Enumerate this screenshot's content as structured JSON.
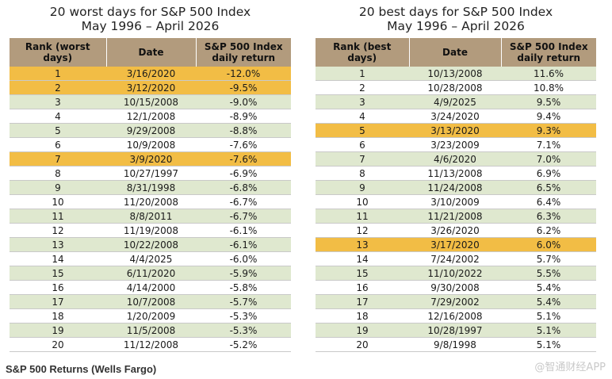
{
  "worst": {
    "title": "20 worst days for S&P 500 Index",
    "subtitle": "May 1996 – April 2026",
    "headers": [
      "Rank (worst days)",
      "Date",
      "S&P 500 Index daily return"
    ],
    "rows": [
      {
        "rank": "1",
        "date": "3/16/2020",
        "ret": "-12.0%",
        "highlight": true
      },
      {
        "rank": "2",
        "date": "3/12/2020",
        "ret": "-9.5%",
        "highlight": true
      },
      {
        "rank": "3",
        "date": "10/15/2008",
        "ret": "-9.0%",
        "highlight": false
      },
      {
        "rank": "4",
        "date": "12/1/2008",
        "ret": "-8.9%",
        "highlight": false
      },
      {
        "rank": "5",
        "date": "9/29/2008",
        "ret": "-8.8%",
        "highlight": false
      },
      {
        "rank": "6",
        "date": "10/9/2008",
        "ret": "-7.6%",
        "highlight": false
      },
      {
        "rank": "7",
        "date": "3/9/2020",
        "ret": "-7.6%",
        "highlight": true
      },
      {
        "rank": "8",
        "date": "10/27/1997",
        "ret": "-6.9%",
        "highlight": false
      },
      {
        "rank": "9",
        "date": "8/31/1998",
        "ret": "-6.8%",
        "highlight": false
      },
      {
        "rank": "10",
        "date": "11/20/2008",
        "ret": "-6.7%",
        "highlight": false
      },
      {
        "rank": "11",
        "date": "8/8/2011",
        "ret": "-6.7%",
        "highlight": false
      },
      {
        "rank": "12",
        "date": "11/19/2008",
        "ret": "-6.1%",
        "highlight": false
      },
      {
        "rank": "13",
        "date": "10/22/2008",
        "ret": "-6.1%",
        "highlight": false
      },
      {
        "rank": "14",
        "date": "4/4/2025",
        "ret": "-6.0%",
        "highlight": false
      },
      {
        "rank": "15",
        "date": "6/11/2020",
        "ret": "-5.9%",
        "highlight": false
      },
      {
        "rank": "16",
        "date": "4/14/2000",
        "ret": "-5.8%",
        "highlight": false
      },
      {
        "rank": "17",
        "date": "10/7/2008",
        "ret": "-5.7%",
        "highlight": false
      },
      {
        "rank": "18",
        "date": "1/20/2009",
        "ret": "-5.3%",
        "highlight": false
      },
      {
        "rank": "19",
        "date": "11/5/2008",
        "ret": "-5.3%",
        "highlight": false
      },
      {
        "rank": "20",
        "date": "11/12/2008",
        "ret": "-5.2%",
        "highlight": false
      }
    ]
  },
  "best": {
    "title": "20 best days for S&P 500 Index",
    "subtitle": "May 1996 – April 2026",
    "headers": [
      "Rank (best days)",
      "Date",
      "S&P 500 Index daily return"
    ],
    "rows": [
      {
        "rank": "1",
        "date": "10/13/2008",
        "ret": "11.6%",
        "highlight": false
      },
      {
        "rank": "2",
        "date": "10/28/2008",
        "ret": "10.8%",
        "highlight": false
      },
      {
        "rank": "3",
        "date": "4/9/2025",
        "ret": "9.5%",
        "highlight": false
      },
      {
        "rank": "4",
        "date": "3/24/2020",
        "ret": "9.4%",
        "highlight": false
      },
      {
        "rank": "5",
        "date": "3/13/2020",
        "ret": "9.3%",
        "highlight": true
      },
      {
        "rank": "6",
        "date": "3/23/2009",
        "ret": "7.1%",
        "highlight": false
      },
      {
        "rank": "7",
        "date": "4/6/2020",
        "ret": "7.0%",
        "highlight": false
      },
      {
        "rank": "8",
        "date": "11/13/2008",
        "ret": "6.9%",
        "highlight": false
      },
      {
        "rank": "9",
        "date": "11/24/2008",
        "ret": "6.5%",
        "highlight": false
      },
      {
        "rank": "10",
        "date": "3/10/2009",
        "ret": "6.4%",
        "highlight": false
      },
      {
        "rank": "11",
        "date": "11/21/2008",
        "ret": "6.3%",
        "highlight": false
      },
      {
        "rank": "12",
        "date": "3/26/2020",
        "ret": "6.2%",
        "highlight": false
      },
      {
        "rank": "13",
        "date": "3/17/2020",
        "ret": "6.0%",
        "highlight": true
      },
      {
        "rank": "14",
        "date": "7/24/2002",
        "ret": "5.7%",
        "highlight": false
      },
      {
        "rank": "15",
        "date": "11/10/2022",
        "ret": "5.5%",
        "highlight": false
      },
      {
        "rank": "16",
        "date": "9/30/2008",
        "ret": "5.4%",
        "highlight": false
      },
      {
        "rank": "17",
        "date": "7/29/2002",
        "ret": "5.4%",
        "highlight": false
      },
      {
        "rank": "18",
        "date": "12/16/2008",
        "ret": "5.1%",
        "highlight": false
      },
      {
        "rank": "19",
        "date": "10/28/1997",
        "ret": "5.1%",
        "highlight": false
      },
      {
        "rank": "20",
        "date": "9/8/1998",
        "ret": "5.1%",
        "highlight": false
      }
    ]
  },
  "caption": "S&P 500 Returns (Wells Fargo)",
  "watermark": "@智通财经APP",
  "colors": {
    "header_bg": "#b29b7d",
    "band_green": "#dfe8cf",
    "highlight_gold": "#f2bd45"
  }
}
